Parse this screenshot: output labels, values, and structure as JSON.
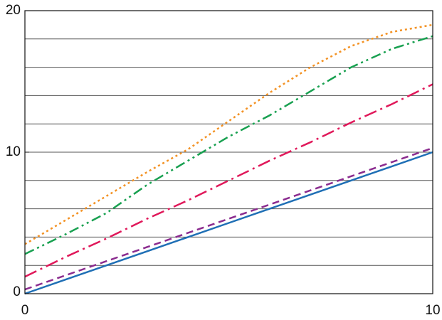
{
  "chart_data": {
    "type": "line",
    "x": [
      0,
      1,
      2,
      3,
      4,
      5,
      6,
      7,
      8,
      9,
      10
    ],
    "series": [
      {
        "color": "#1f6fb5",
        "dash": "solid",
        "values": [
          0,
          1,
          2,
          3,
          4,
          5,
          6,
          7,
          8,
          9,
          10
        ]
      },
      {
        "color": "#8b2c8f",
        "dash": "dashed",
        "values": [
          0.3,
          1.3,
          2.3,
          3.3,
          4.3,
          5.3,
          6.3,
          7.3,
          8.3,
          9.3,
          10.3
        ]
      },
      {
        "color": "#e0185a",
        "dash": "dashdot",
        "values": [
          1.2,
          2.6,
          3.9,
          5.3,
          6.6,
          8.0,
          9.4,
          10.7,
          12.1,
          13.4,
          14.8
        ]
      },
      {
        "color": "#18a050",
        "dash": "dashdotdot",
        "values": [
          2.8,
          4.2,
          5.7,
          7.7,
          9.4,
          11.1,
          12.6,
          14.3,
          16.0,
          17.3,
          18.2
        ]
      },
      {
        "color": "#f39224",
        "dash": "dotted",
        "values": [
          3.5,
          5.2,
          6.9,
          8.6,
          10.2,
          12.2,
          14.2,
          16.0,
          17.5,
          18.5,
          19.0
        ]
      }
    ],
    "xlim": [
      0,
      10
    ],
    "xticks": [
      0,
      10
    ],
    "ylim": [
      0,
      20
    ],
    "yticks": [
      0,
      10,
      20
    ],
    "grid_lines": [
      2,
      4,
      6,
      8,
      10,
      12,
      14,
      16,
      18
    ]
  }
}
